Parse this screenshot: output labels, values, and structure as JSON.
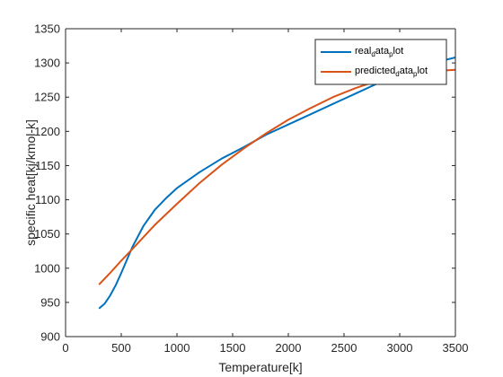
{
  "chart_data": {
    "type": "line",
    "title": "",
    "xlabel": "Temperature[k]",
    "ylabel": "specific heat[kj/kmol-k]",
    "xlim": [
      0,
      3500
    ],
    "ylim": [
      900,
      1350
    ],
    "xticks": [
      0,
      500,
      1000,
      1500,
      2000,
      2500,
      3000,
      3500
    ],
    "yticks": [
      900,
      950,
      1000,
      1050,
      1100,
      1150,
      1200,
      1250,
      1300,
      1350
    ],
    "grid": false,
    "legend_position": "top-right",
    "series": [
      {
        "name": "real_data_plot",
        "legend_parts": [
          [
            "real",
            false
          ],
          [
            "d",
            true
          ],
          [
            "ata",
            false
          ],
          [
            "p",
            true
          ],
          [
            "lot",
            false
          ]
        ],
        "color": "#0072BD",
        "x": [
          300,
          350,
          400,
          450,
          500,
          550,
          600,
          700,
          800,
          900,
          1000,
          1200,
          1400,
          1600,
          1800,
          2000,
          2200,
          2400,
          2600,
          2800,
          3000,
          3200,
          3400,
          3500
        ],
        "y": [
          941,
          948,
          960,
          975,
          993,
          1012,
          1031,
          1062,
          1085,
          1102,
          1117,
          1140,
          1160,
          1177,
          1195,
          1210,
          1225,
          1240,
          1255,
          1270,
          1280,
          1292,
          1304,
          1308
        ]
      },
      {
        "name": "predicted_data_plot",
        "legend_parts": [
          [
            "predicted",
            false
          ],
          [
            "d",
            true
          ],
          [
            "ata",
            false
          ],
          [
            "p",
            true
          ],
          [
            "lot",
            false
          ]
        ],
        "color": "#D95319",
        "x": [
          300,
          400,
          500,
          600,
          800,
          1000,
          1200,
          1400,
          1600,
          1800,
          2000,
          2200,
          2400,
          2600,
          2800,
          3000,
          3200,
          3400,
          3500
        ],
        "y": [
          976,
          993,
          1011,
          1028,
          1063,
          1094,
          1124,
          1151,
          1175,
          1197,
          1217,
          1234,
          1250,
          1263,
          1274,
          1282,
          1287,
          1289,
          1290
        ]
      }
    ]
  }
}
